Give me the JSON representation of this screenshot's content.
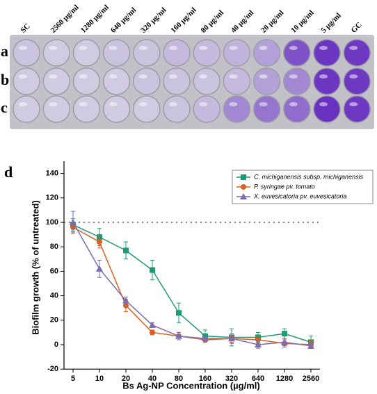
{
  "plate": {
    "columns": [
      "SC",
      "2560 µg/ml",
      "1280 µg/ml",
      "640 µg/ml",
      "320 µg/ml",
      "160 µg/ml",
      "80 µg/ml",
      "40 µg/ml",
      "20 µg/ml",
      "10 µg/ml",
      "5 µg/ml",
      "GC"
    ],
    "rows": [
      "a",
      "b",
      "c"
    ]
  },
  "chart_data": {
    "type": "line",
    "panel_label": "d",
    "x_label": "Bs Ag-NP Concentration (µg/ml)",
    "y_label": "Biofilm growth (% of untreated)",
    "categories": [
      "5",
      "10",
      "20",
      "40",
      "80",
      "160",
      "320",
      "640",
      "1280",
      "2560"
    ],
    "ylim": [
      -20,
      150
    ],
    "yticks": [
      -20,
      0,
      20,
      40,
      60,
      80,
      100,
      120,
      140
    ],
    "reference_line": 100,
    "legend": "upper right",
    "series": [
      {
        "name": "C. michiganensis subsp. michiganensis",
        "color": "#1c9a74",
        "marker": "square",
        "values": [
          98,
          88,
          77,
          61,
          26,
          7,
          6,
          6,
          9,
          2
        ],
        "errors": [
          5,
          7,
          7,
          8,
          8,
          5,
          7,
          4,
          4,
          5
        ]
      },
      {
        "name": "P. syringae pv. tomato",
        "color": "#d9601f",
        "marker": "circle",
        "values": [
          96,
          84,
          32,
          10,
          7,
          4,
          5,
          4,
          1,
          0
        ],
        "errors": [
          4,
          5,
          5,
          2,
          3,
          2,
          3,
          3,
          3,
          3
        ]
      },
      {
        "name": "X. euvesicatoria pv. euvesicatoria",
        "color": "#7b6cb2",
        "marker": "triangle",
        "values": [
          100,
          62,
          36,
          16,
          7,
          5,
          5,
          0,
          2,
          -1
        ],
        "errors": [
          9,
          7,
          3,
          2,
          3,
          2,
          4,
          3,
          3,
          2
        ]
      }
    ]
  }
}
